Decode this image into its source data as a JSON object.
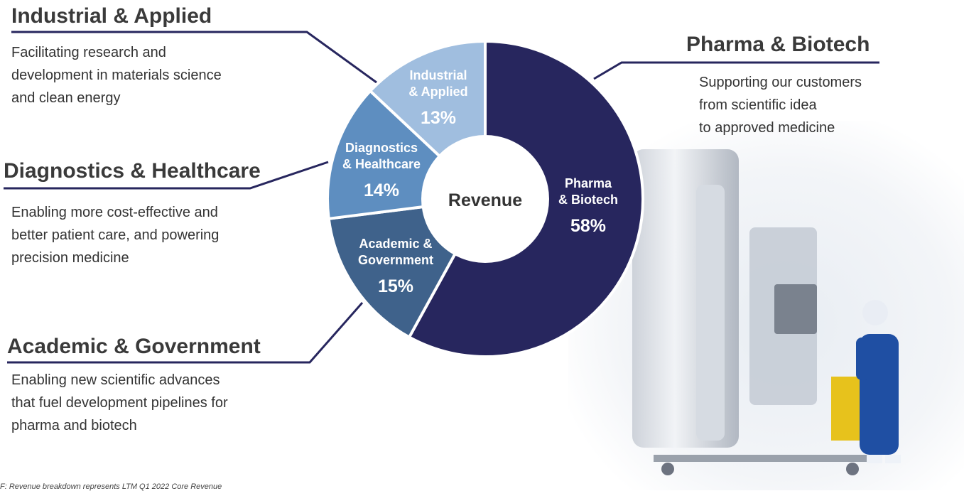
{
  "chart_data": {
    "type": "pie",
    "center_label": "Revenue",
    "slices": [
      {
        "label_lines": [
          "Pharma",
          "& Biotech"
        ],
        "value_label": "58%",
        "value": 58,
        "color": "#27265e"
      },
      {
        "label_lines": [
          "Academic &",
          "Government"
        ],
        "value_label": "15%",
        "value": 15,
        "color": "#3f628b"
      },
      {
        "label_lines": [
          "Diagnostics",
          "& Healthcare"
        ],
        "value_label": "14%",
        "value": 14,
        "color": "#5e8ec0"
      },
      {
        "label_lines": [
          "Industrial",
          "& Applied"
        ],
        "value_label": "13%",
        "value": 13,
        "color": "#a0bedf"
      }
    ]
  },
  "segments": {
    "industrial": {
      "title": "Industrial & Applied",
      "description": "Facilitating research and\ndevelopment in materials science\nand clean energy"
    },
    "diagnostics": {
      "title": "Diagnostics & Healthcare",
      "description": "Enabling more cost-effective and\nbetter patient care, and powering\nprecision medicine"
    },
    "academic": {
      "title": "Academic & Government",
      "description": "Enabling new scientific advances\nthat fuel development pipelines for\npharma and biotech"
    },
    "pharma": {
      "title": "Pharma & Biotech",
      "description": "Supporting our customers\nfrom scientific idea\nto approved medicine"
    }
  },
  "footnote": "F: Revenue breakdown represents LTM Q1 2022 Core Revenue",
  "colors": {
    "connector": "#27265e",
    "title_text": "#3a3a3a",
    "body_text": "#333333"
  }
}
